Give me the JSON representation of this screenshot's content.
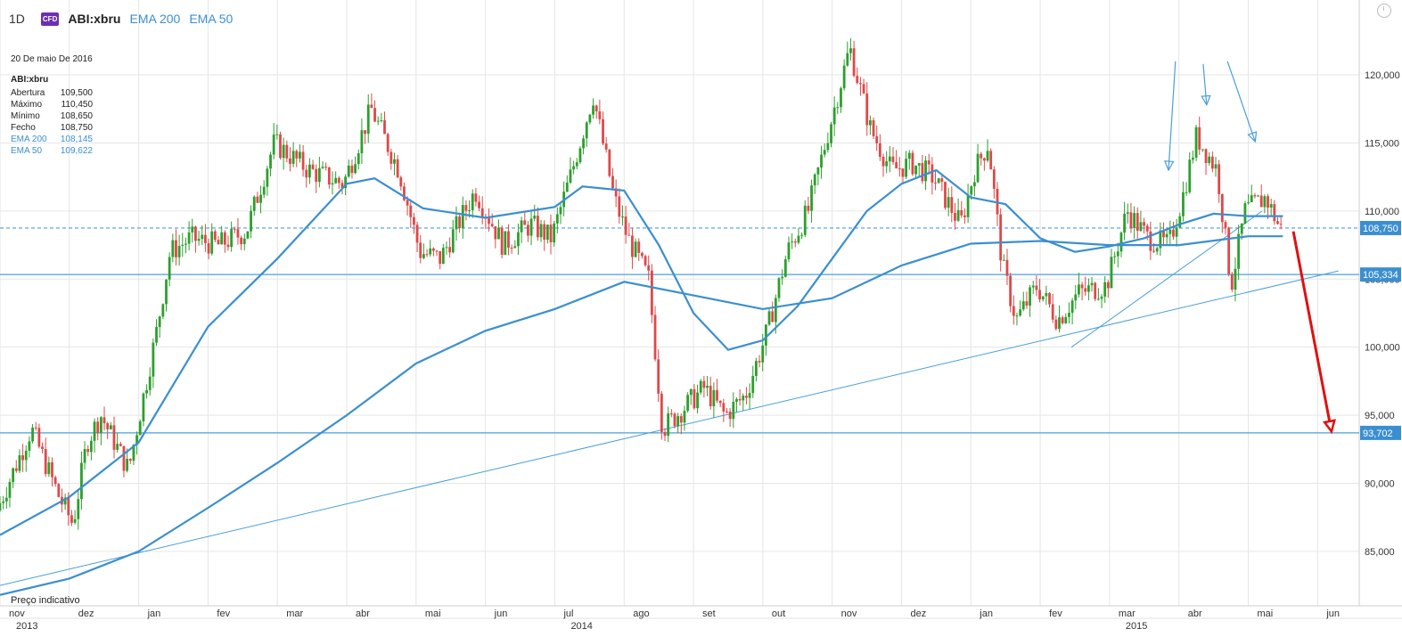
{
  "header": {
    "timeframe": "1D",
    "badge": "CFD",
    "symbol": "ABI:xbru",
    "ema_200_label": "EMA 200",
    "ema_50_label": "EMA 50"
  },
  "info": {
    "date": "20 De maio De 2016",
    "symbol": "ABI:xbru",
    "rows": [
      {
        "label": "Abertura",
        "value": "109,500"
      },
      {
        "label": "Máximo",
        "value": "110,450"
      },
      {
        "label": "Mínimo",
        "value": "108,650"
      },
      {
        "label": "Fecho",
        "value": "108,750"
      },
      {
        "label": "EMA 200",
        "value": "108,145"
      },
      {
        "label": "EMA 50",
        "value": "109,622"
      }
    ]
  },
  "footer_note": "Preço indicativo",
  "colors": {
    "up": "#2ca02c",
    "down": "#e04848",
    "ema": "#3b8fd0",
    "trend": "#4a9fd8",
    "forecast": "#e01010",
    "grid": "#e6e6e6"
  },
  "chart_data": {
    "type": "candlestick",
    "symbol": "ABI:xbru",
    "x_range": [
      "2013-11",
      "2015-06"
    ],
    "y_range": [
      81000,
      125500
    ],
    "y_ticks": [
      {
        "value": 85000,
        "label": "85,000"
      },
      {
        "value": 90000,
        "label": "90,000"
      },
      {
        "value": 95000,
        "label": "95,000"
      },
      {
        "value": 100000,
        "label": "100,000"
      },
      {
        "value": 105000,
        "label": "105,000"
      },
      {
        "value": 110000,
        "label": "110,000"
      },
      {
        "value": 115000,
        "label": "115,000"
      },
      {
        "value": 120000,
        "label": "120,000"
      }
    ],
    "x_ticks": [
      {
        "month": 0,
        "label": "nov"
      },
      {
        "month": 1,
        "label": "dez"
      },
      {
        "month": 2,
        "label": "jan"
      },
      {
        "month": 3,
        "label": "fev"
      },
      {
        "month": 4,
        "label": "mar"
      },
      {
        "month": 5,
        "label": "abr"
      },
      {
        "month": 6,
        "label": "mai"
      },
      {
        "month": 7,
        "label": "jun"
      },
      {
        "month": 8,
        "label": "jul"
      },
      {
        "month": 9,
        "label": "ago"
      },
      {
        "month": 10,
        "label": "set"
      },
      {
        "month": 11,
        "label": "out"
      },
      {
        "month": 12,
        "label": "nov"
      },
      {
        "month": 13,
        "label": "dez"
      },
      {
        "month": 14,
        "label": "jan"
      },
      {
        "month": 15,
        "label": "fev"
      },
      {
        "month": 16,
        "label": "mar"
      },
      {
        "month": 17,
        "label": "abr"
      },
      {
        "month": 18,
        "label": "mai"
      },
      {
        "month": 19,
        "label": "jun"
      }
    ],
    "year_labels": [
      {
        "month": 0,
        "label": "2013"
      },
      {
        "month": 8,
        "label": "2014"
      },
      {
        "month": 16,
        "label": "2015"
      }
    ],
    "price_path": [
      [
        0,
        88000
      ],
      [
        0.5,
        94000
      ],
      [
        0.9,
        89000
      ],
      [
        1.1,
        87000
      ],
      [
        1.3,
        93000
      ],
      [
        1.5,
        95000
      ],
      [
        1.9,
        91000
      ],
      [
        2.1,
        96000
      ],
      [
        2.3,
        101000
      ],
      [
        2.5,
        107000
      ],
      [
        2.8,
        108000
      ],
      [
        3.2,
        107500
      ],
      [
        3.6,
        108500
      ],
      [
        4.0,
        115000
      ],
      [
        4.5,
        113000
      ],
      [
        5.0,
        112000
      ],
      [
        5.4,
        117500
      ],
      [
        5.8,
        113000
      ],
      [
        6.1,
        107000
      ],
      [
        6.4,
        106500
      ],
      [
        6.9,
        111500
      ],
      [
        7.3,
        107500
      ],
      [
        7.7,
        109000
      ],
      [
        8.0,
        108000
      ],
      [
        8.3,
        113000
      ],
      [
        8.6,
        118500
      ],
      [
        8.9,
        111000
      ],
      [
        9.1,
        108000
      ],
      [
        9.4,
        105000
      ],
      [
        9.6,
        94000
      ],
      [
        9.9,
        95500
      ],
      [
        10.2,
        97000
      ],
      [
        10.5,
        95000
      ],
      [
        10.8,
        96500
      ],
      [
        11.1,
        101000
      ],
      [
        11.4,
        107000
      ],
      [
        11.7,
        110000
      ],
      [
        12.0,
        116000
      ],
      [
        12.3,
        122000
      ],
      [
        12.6,
        116000
      ],
      [
        12.9,
        113000
      ],
      [
        13.2,
        113500
      ],
      [
        13.5,
        112500
      ],
      [
        13.9,
        109000
      ],
      [
        14.1,
        113000
      ],
      [
        14.3,
        115000
      ],
      [
        14.5,
        106000
      ],
      [
        14.7,
        102000
      ],
      [
        15.0,
        104500
      ],
      [
        15.3,
        102000
      ],
      [
        15.6,
        104000
      ],
      [
        16.0,
        104500
      ],
      [
        16.3,
        110000
      ],
      [
        16.6,
        108000
      ],
      [
        16.9,
        107500
      ],
      [
        17.1,
        111000
      ],
      [
        17.3,
        115500
      ],
      [
        17.6,
        113000
      ],
      [
        17.8,
        104500
      ],
      [
        18.0,
        110000
      ],
      [
        18.3,
        111000
      ],
      [
        18.5,
        108750
      ]
    ],
    "series": [
      {
        "name": "EMA 200",
        "points": [
          [
            0,
            81800
          ],
          [
            1,
            83000
          ],
          [
            2,
            85000
          ],
          [
            3,
            88200
          ],
          [
            4,
            91500
          ],
          [
            5,
            95000
          ],
          [
            6,
            98800
          ],
          [
            7,
            101200
          ],
          [
            8,
            102800
          ],
          [
            9,
            104800
          ],
          [
            10,
            103800
          ],
          [
            11,
            102800
          ],
          [
            12,
            103600
          ],
          [
            13,
            106000
          ],
          [
            14,
            107600
          ],
          [
            15,
            107800
          ],
          [
            16,
            107500
          ],
          [
            17,
            107500
          ],
          [
            18,
            108145
          ],
          [
            18.5,
            108145
          ]
        ]
      },
      {
        "name": "EMA 50",
        "points": [
          [
            0,
            86200
          ],
          [
            1,
            89000
          ],
          [
            2,
            93000
          ],
          [
            3,
            101500
          ],
          [
            4,
            106500
          ],
          [
            5,
            112000
          ],
          [
            5.4,
            112400
          ],
          [
            6.1,
            110200
          ],
          [
            7,
            109500
          ],
          [
            8,
            110300
          ],
          [
            8.4,
            111800
          ],
          [
            9,
            111500
          ],
          [
            9.5,
            107500
          ],
          [
            10,
            102500
          ],
          [
            10.5,
            99800
          ],
          [
            11,
            100500
          ],
          [
            11.5,
            103000
          ],
          [
            12,
            106500
          ],
          [
            12.5,
            110000
          ],
          [
            13,
            112000
          ],
          [
            13.5,
            113000
          ],
          [
            14,
            111000
          ],
          [
            14.5,
            110500
          ],
          [
            15,
            108000
          ],
          [
            15.5,
            107000
          ],
          [
            16,
            107400
          ],
          [
            16.5,
            108000
          ],
          [
            17,
            109000
          ],
          [
            17.5,
            109800
          ],
          [
            18,
            109622
          ],
          [
            18.5,
            109622
          ]
        ]
      }
    ],
    "horizontal_lines": [
      {
        "value": 108750,
        "label": "108,750",
        "style": "dashed"
      },
      {
        "value": 105334,
        "label": "105,334",
        "style": "solid"
      },
      {
        "value": 93702,
        "label": "93,702",
        "style": "solid"
      }
    ],
    "trendlines": [
      {
        "from": [
          0,
          82500
        ],
        "to": [
          19.3,
          105600
        ]
      },
      {
        "from": [
          15.45,
          100000
        ],
        "to": [
          18.2,
          110000
        ]
      }
    ],
    "annotations": [
      {
        "type": "arrow",
        "from": [
          16.95,
          121000
        ],
        "to": [
          16.85,
          113000
        ],
        "color": "#4a9fd8"
      },
      {
        "type": "arrow",
        "from": [
          17.35,
          120800
        ],
        "to": [
          17.4,
          117800
        ],
        "color": "#4a9fd8"
      },
      {
        "type": "arrow",
        "from": [
          17.7,
          121000
        ],
        "to": [
          18.1,
          115100
        ],
        "color": "#4a9fd8"
      },
      {
        "type": "arrow",
        "from": [
          18.65,
          108500
        ],
        "to": [
          19.2,
          93800
        ],
        "color": "#e01010"
      }
    ]
  }
}
